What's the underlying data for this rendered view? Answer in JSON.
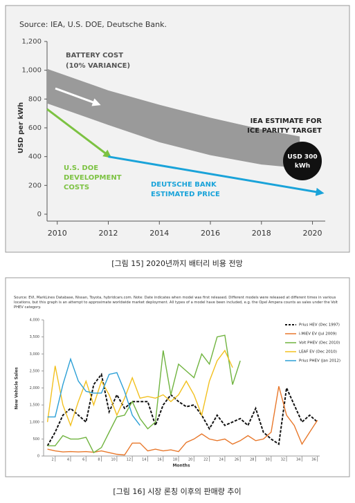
{
  "chart_data": [
    {
      "type": "line",
      "title": "Source: IEA, U.S. DOE, Deutsche Bank.",
      "ylabel": "USD per kWh",
      "xlim": [
        2009.6,
        2020.5
      ],
      "xticks": [
        2010,
        2012,
        2014,
        2016,
        2018,
        2020
      ],
      "ylim": [
        0,
        1200
      ],
      "yticks": [
        0,
        200,
        400,
        600,
        800,
        {
          "value": 1000,
          "label": "1,000"
        },
        {
          "value": 1200,
          "label": "1,200"
        }
      ],
      "band": {
        "label": [
          "BATTERY COST",
          "(10% VARIANCE)"
        ],
        "color": "#9a9a9a",
        "x": [
          2009.6,
          2012,
          2014,
          2016,
          2018,
          2019.5
        ],
        "high": [
          1010,
          860,
          760,
          670,
          590,
          540
        ],
        "low": [
          770,
          620,
          500,
          410,
          345,
          320
        ]
      },
      "series": [
        {
          "name": [
            "U.S. DOE",
            "DEVELOPMENT",
            "COSTS"
          ],
          "color": "#7cc242",
          "x": [
            2009.6,
            2012
          ],
          "values": [
            730,
            408
          ]
        },
        {
          "name": [
            "DEUTSCHE BANK",
            "ESTIMATED PRICE"
          ],
          "color": "#1aa3d9",
          "x": [
            2012,
            2020.3
          ],
          "values": [
            400,
            150
          ]
        }
      ],
      "annotations": [
        {
          "text": [
            "IEA ESTIMATE FOR",
            "ICE PARITY TARGET"
          ]
        },
        {
          "text": [
            "USD 300",
            "kWh"
          ]
        }
      ],
      "caption": "[그림 15] 2020년까지 배터리 비용 전망"
    },
    {
      "type": "line",
      "title": "Source: EVI, MarkLines Database, Nissan, Toyota, hybridcars.com. Note: Date indicates when model was first released. Different models were released at different times in various locations, but this graph is an attempt to approximate worldwide market deployment. All types of a model have been included, e.g. the Opel Ampera counts as sales under the Volt PHEV category.",
      "xlabel": "Months",
      "ylabel": "New Vehicle Sales",
      "x": [
        1,
        2,
        3,
        4,
        5,
        6,
        7,
        8,
        9,
        10,
        11,
        12,
        13,
        14,
        15,
        16,
        17,
        18,
        19,
        20,
        21,
        22,
        23,
        24,
        25,
        26,
        27,
        28,
        29,
        30,
        31,
        32,
        33,
        34,
        35,
        36
      ],
      "xlim": [
        0.5,
        36.3
      ],
      "xticks": [
        2,
        4,
        6,
        8,
        10,
        12,
        14,
        16,
        18,
        20,
        22,
        24,
        26,
        28,
        30,
        32,
        34,
        36
      ],
      "ylim": [
        0,
        4000
      ],
      "yticks": [
        0,
        500,
        {
          "value": 1000,
          "label": "1,000"
        },
        {
          "value": 1500,
          "label": "1,500"
        },
        {
          "value": 2000,
          "label": "2,000"
        },
        {
          "value": 2500,
          "label": "2,500"
        },
        {
          "value": 3000,
          "label": "3,000"
        },
        {
          "value": 3500,
          "label": "3,500"
        },
        {
          "value": 4000,
          "label": "4,000"
        }
      ],
      "series": [
        {
          "name": "Prius HEV (Dec 1997)",
          "color": "#111111",
          "dashed": true,
          "values": [
            300,
            700,
            1200,
            1400,
            1200,
            1000,
            2100,
            2400,
            1300,
            1800,
            1400,
            1600,
            1600,
            1600,
            900,
            1500,
            1800,
            1600,
            1450,
            1500,
            1200,
            800,
            1200,
            900,
            1000,
            1100,
            900,
            1400,
            700,
            500,
            350,
            2000,
            1500,
            1000,
            1200,
            1000
          ]
        },
        {
          "name": "i-MiEV EV (Jul 2009)",
          "color": "#e8772a",
          "values": [
            200,
            150,
            120,
            130,
            120,
            130,
            110,
            150,
            100,
            50,
            30,
            380,
            380,
            150,
            200,
            150,
            180,
            130,
            400,
            500,
            650,
            500,
            450,
            500,
            350,
            450,
            600,
            450,
            500,
            700,
            2050,
            1200,
            900,
            350,
            700,
            1050
          ]
        },
        {
          "name": "Volt PHEV (Dec 2010)",
          "color": "#6fb33e",
          "values": [
            300,
            300,
            600,
            500,
            500,
            550,
            100,
            250,
            700,
            1150,
            1200,
            1600,
            1100,
            800,
            1000,
            3100,
            1800,
            2700,
            2500,
            2300,
            3000,
            2700,
            3500,
            3550,
            2100,
            2800,
            null,
            null,
            null,
            null,
            null,
            null,
            null,
            null,
            null,
            null
          ]
        },
        {
          "name": "LEAF EV (Dec 2010)",
          "color": "#f2c01e",
          "values": [
            1000,
            2650,
            1500,
            900,
            1600,
            2200,
            1500,
            2200,
            1800,
            1200,
            1700,
            2300,
            1700,
            1750,
            1700,
            1800,
            1600,
            1800,
            2200,
            1800,
            1200,
            2200,
            2800,
            3100,
            2600,
            null,
            null,
            null,
            null,
            null,
            null,
            null,
            null,
            null,
            null,
            null
          ]
        },
        {
          "name": "Prius PHEV (Jan 2012)",
          "color": "#2a9fd6",
          "values": [
            1150,
            1150,
            2100,
            2850,
            2200,
            1900,
            1850,
            1850,
            2400,
            2450,
            1900,
            1200,
            900,
            null,
            null,
            null,
            null,
            null,
            null,
            null,
            null,
            null,
            null,
            null,
            null,
            null,
            null,
            null,
            null,
            null,
            null,
            null,
            null,
            null,
            null,
            null
          ]
        }
      ],
      "caption": "[그림 16] 시장 론칭 이후의 판매량 추이"
    }
  ]
}
